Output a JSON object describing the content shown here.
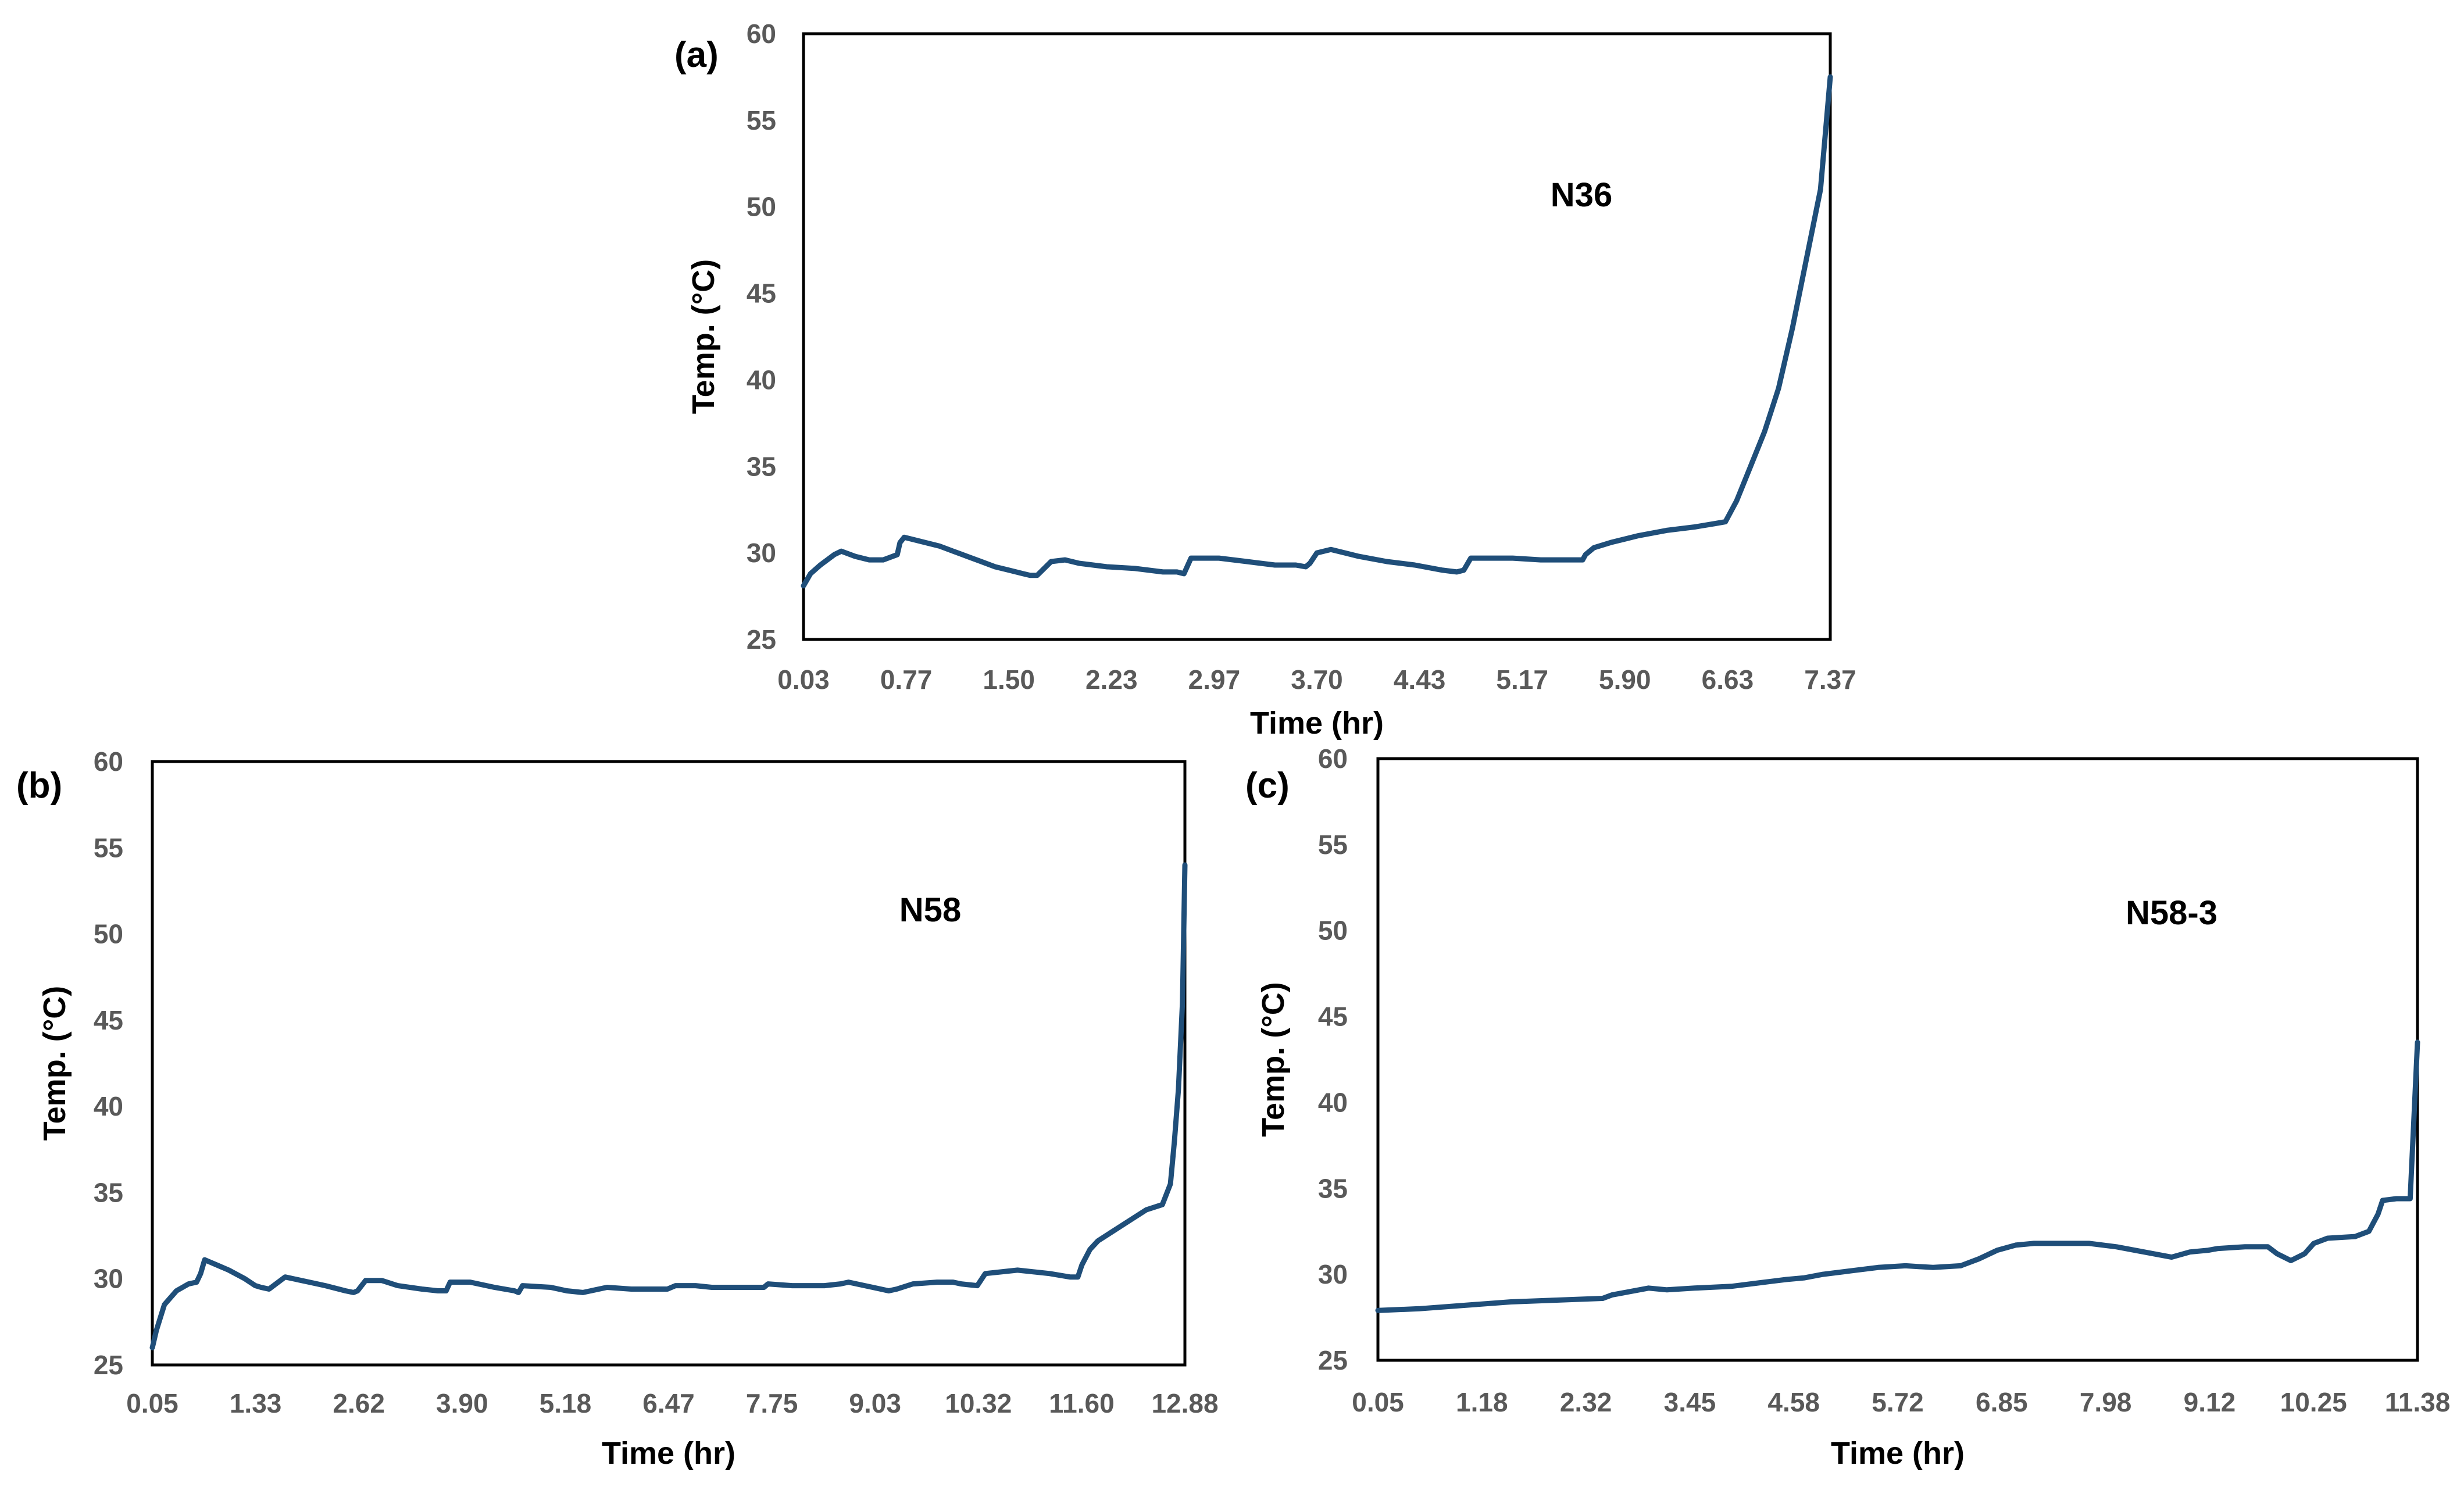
{
  "chart_data": [
    {
      "type": "line",
      "panel_label": "(a)",
      "series_label": "N36",
      "xlabel": "Time (hr)",
      "ylabel": "Temp. (°C)",
      "ylim": [
        25,
        60
      ],
      "yticks": [
        "25",
        "30",
        "35",
        "40",
        "45",
        "50",
        "55",
        "60"
      ],
      "categories": [
        "0.03",
        "0.77",
        "1.50",
        "2.23",
        "2.97",
        "3.70",
        "4.43",
        "5.17",
        "5.90",
        "6.63",
        "7.37"
      ],
      "xlim": [
        0.03,
        7.37
      ],
      "grid": false,
      "series": [
        {
          "x": [
            0.03,
            0.08,
            0.15,
            0.25,
            0.3,
            0.4,
            0.5,
            0.6,
            0.7,
            0.72,
            0.75,
            0.8,
            0.85,
            0.9,
            1.0,
            1.1,
            1.2,
            1.3,
            1.4,
            1.5,
            1.55,
            1.6,
            1.65,
            1.7,
            1.8,
            1.9,
            2.0,
            2.2,
            2.4,
            2.6,
            2.7,
            2.75,
            2.8,
            2.9,
            3.0,
            3.2,
            3.4,
            3.55,
            3.62,
            3.65,
            3.7,
            3.8,
            3.9,
            4.0,
            4.2,
            4.4,
            4.6,
            4.7,
            4.75,
            4.8,
            4.9,
            5.1,
            5.3,
            5.5,
            5.6,
            5.62,
            5.68,
            5.8,
            6.0,
            6.2,
            6.4,
            6.55,
            6.62,
            6.7,
            6.8,
            6.9,
            7.0,
            7.1,
            7.2,
            7.3,
            7.37
          ],
          "values": [
            28.1,
            28.8,
            29.3,
            29.9,
            30.1,
            29.8,
            29.6,
            29.6,
            29.9,
            30.6,
            30.9,
            30.8,
            30.7,
            30.6,
            30.4,
            30.1,
            29.8,
            29.5,
            29.2,
            29.0,
            28.9,
            28.8,
            28.7,
            28.7,
            29.5,
            29.6,
            29.4,
            29.2,
            29.1,
            28.9,
            28.9,
            28.8,
            29.7,
            29.7,
            29.7,
            29.5,
            29.3,
            29.3,
            29.2,
            29.4,
            30.0,
            30.2,
            30.0,
            29.8,
            29.5,
            29.3,
            29.0,
            28.9,
            29.0,
            29.7,
            29.7,
            29.7,
            29.6,
            29.6,
            29.6,
            29.9,
            30.3,
            30.6,
            31.0,
            31.3,
            31.5,
            31.7,
            31.8,
            33.0,
            35.0,
            37.0,
            39.5,
            43.0,
            47.0,
            51.0,
            57.5
          ]
        }
      ]
    },
    {
      "type": "line",
      "panel_label": "(b)",
      "series_label": "N58",
      "xlabel": "Time (hr)",
      "ylabel": "Temp. (°C)",
      "ylim": [
        25,
        60
      ],
      "yticks": [
        "25",
        "30",
        "35",
        "40",
        "45",
        "50",
        "55",
        "60"
      ],
      "categories": [
        "0.05",
        "1.33",
        "2.62",
        "3.90",
        "5.18",
        "6.47",
        "7.75",
        "9.03",
        "10.32",
        "11.60",
        "12.88"
      ],
      "xlim": [
        0.05,
        12.88
      ],
      "grid": false,
      "series": [
        {
          "x": [
            0.05,
            0.1,
            0.2,
            0.35,
            0.5,
            0.6,
            0.65,
            0.7,
            0.8,
            1.0,
            1.2,
            1.33,
            1.4,
            1.5,
            1.7,
            2.0,
            2.2,
            2.45,
            2.55,
            2.6,
            2.7,
            2.9,
            3.1,
            3.4,
            3.6,
            3.7,
            3.75,
            4.0,
            4.3,
            4.55,
            4.6,
            4.65,
            5.0,
            5.2,
            5.4,
            5.7,
            6.0,
            6.3,
            6.45,
            6.55,
            6.8,
            7.0,
            7.4,
            7.65,
            7.7,
            8.0,
            8.4,
            8.6,
            8.7,
            9.0,
            9.1,
            9.2,
            9.3,
            9.5,
            9.8,
            10.0,
            10.1,
            10.3,
            10.4,
            10.8,
            11.2,
            11.45,
            11.55,
            11.6,
            11.7,
            11.8,
            12.0,
            12.2,
            12.4,
            12.6,
            12.7,
            12.75,
            12.8,
            12.85,
            12.88
          ],
          "values": [
            26.0,
            27.0,
            28.5,
            29.3,
            29.7,
            29.8,
            30.3,
            31.1,
            30.9,
            30.5,
            30.0,
            29.6,
            29.5,
            29.4,
            30.1,
            29.8,
            29.6,
            29.3,
            29.2,
            29.3,
            29.9,
            29.9,
            29.6,
            29.4,
            29.3,
            29.3,
            29.8,
            29.8,
            29.5,
            29.3,
            29.2,
            29.6,
            29.5,
            29.3,
            29.2,
            29.5,
            29.4,
            29.4,
            29.4,
            29.6,
            29.6,
            29.5,
            29.5,
            29.5,
            29.7,
            29.6,
            29.6,
            29.7,
            29.8,
            29.5,
            29.4,
            29.3,
            29.4,
            29.7,
            29.8,
            29.8,
            29.7,
            29.6,
            30.3,
            30.5,
            30.3,
            30.1,
            30.1,
            30.8,
            31.7,
            32.2,
            32.8,
            33.4,
            34.0,
            34.3,
            35.5,
            38.0,
            41.0,
            46.0,
            54.0
          ]
        }
      ]
    },
    {
      "type": "line",
      "panel_label": "(c)",
      "series_label": "N58-3",
      "xlabel": "Time (hr)",
      "ylabel": "Temp. (°C)",
      "ylim": [
        25,
        60
      ],
      "yticks": [
        "25",
        "30",
        "35",
        "40",
        "45",
        "50",
        "55",
        "60"
      ],
      "categories": [
        "0.05",
        "1.18",
        "2.32",
        "3.45",
        "4.58",
        "5.72",
        "6.85",
        "7.98",
        "9.12",
        "10.25",
        "11.38"
      ],
      "xlim": [
        0.05,
        11.38
      ],
      "grid": false,
      "series": [
        {
          "x": [
            0.05,
            0.5,
            1.0,
            1.5,
            2.0,
            2.5,
            2.6,
            2.8,
            3.0,
            3.2,
            3.5,
            3.9,
            4.2,
            4.5,
            4.7,
            4.9,
            5.2,
            5.5,
            5.8,
            6.1,
            6.4,
            6.6,
            6.8,
            7.0,
            7.2,
            7.5,
            7.8,
            8.1,
            8.4,
            8.7,
            8.9,
            9.1,
            9.2,
            9.5,
            9.75,
            9.85,
            10.0,
            10.15,
            10.25,
            10.4,
            10.7,
            10.85,
            10.95,
            11.0,
            11.15,
            11.3,
            11.38
          ],
          "values": [
            27.9,
            28.0,
            28.2,
            28.4,
            28.5,
            28.6,
            28.8,
            29.0,
            29.2,
            29.1,
            29.2,
            29.3,
            29.5,
            29.7,
            29.8,
            30.0,
            30.2,
            30.4,
            30.5,
            30.4,
            30.5,
            30.9,
            31.4,
            31.7,
            31.8,
            31.8,
            31.8,
            31.6,
            31.3,
            31.0,
            31.3,
            31.4,
            31.5,
            31.6,
            31.6,
            31.2,
            30.8,
            31.2,
            31.8,
            32.1,
            32.2,
            32.5,
            33.5,
            34.3,
            34.4,
            34.4,
            43.5
          ]
        }
      ]
    }
  ]
}
